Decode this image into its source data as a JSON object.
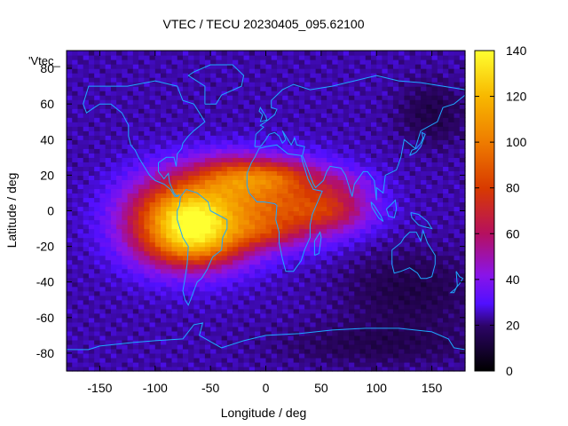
{
  "chart_data": {
    "type": "heatmap",
    "title": "VTEC / TECU 20230405_095.62100",
    "xlabel": "Longitude / deg",
    "ylabel": "Latitude / deg",
    "key_label": "'Vtec_",
    "xlim": [
      -180,
      180
    ],
    "ylim": [
      -90,
      90
    ],
    "xticks": [
      -150,
      -100,
      -50,
      0,
      50,
      100,
      150
    ],
    "yticks": [
      -80,
      -60,
      -40,
      -20,
      0,
      20,
      40,
      60,
      80
    ],
    "colorbar": {
      "min": 0,
      "max": 140,
      "ticks": [
        0,
        20,
        40,
        60,
        80,
        100,
        120,
        140
      ]
    },
    "grid_resolution_deg": {
      "lon": 5,
      "lat": 2.5
    },
    "background_tecu": 24,
    "features": [
      {
        "name": "equatorial-anomaly-americas",
        "lon": -70,
        "lat": -5,
        "peak_tecu": 112,
        "sigma_lon": 35,
        "sigma_lat": 16
      },
      {
        "name": "anomaly-south-crest",
        "lon": -60,
        "lat": -20,
        "peak_tecu": 25,
        "sigma_lon": 30,
        "sigma_lat": 8
      },
      {
        "name": "anomaly-north-crest",
        "lon": -30,
        "lat": 20,
        "peak_tecu": 35,
        "sigma_lon": 25,
        "sigma_lat": 8
      },
      {
        "name": "atlantic-africa-band",
        "lon": 10,
        "lat": 5,
        "peak_tecu": 55,
        "sigma_lon": 40,
        "sigma_lat": 14
      },
      {
        "name": "west-africa-north",
        "lon": 10,
        "lat": 20,
        "peak_tecu": 28,
        "sigma_lon": 25,
        "sigma_lat": 6
      },
      {
        "name": "africa-south",
        "lon": 0,
        "lat": -12,
        "peak_tecu": 20,
        "sigma_lon": 25,
        "sigma_lat": 6
      },
      {
        "name": "indian-ocean-tail",
        "lon": 60,
        "lat": 0,
        "peak_tecu": 28,
        "sigma_lon": 25,
        "sigma_lat": 8
      },
      {
        "name": "arabia-india",
        "lon": 70,
        "lat": 15,
        "peak_tecu": 12,
        "sigma_lon": 20,
        "sigma_lat": 6
      },
      {
        "name": "pacific-south-low",
        "lon": 130,
        "lat": -45,
        "peak_tecu": -10,
        "sigma_lon": 40,
        "sigma_lat": 15
      },
      {
        "name": "east-asia-north-low",
        "lon": 150,
        "lat": 55,
        "peak_tecu": -10,
        "sigma_lon": 20,
        "sigma_lat": 12
      },
      {
        "name": "antarctic-low",
        "lon": 100,
        "lat": -75,
        "peak_tecu": -8,
        "sigma_lon": 60,
        "sigma_lat": 8
      }
    ],
    "coastlines": [
      {
        "name": "north-america",
        "points": [
          [
            -165,
            60
          ],
          [
            -160,
            70
          ],
          [
            -140,
            70
          ],
          [
            -125,
            70
          ],
          [
            -100,
            73
          ],
          [
            -80,
            70
          ],
          [
            -75,
            62
          ],
          [
            -65,
            60
          ],
          [
            -60,
            55
          ],
          [
            -55,
            50
          ],
          [
            -65,
            45
          ],
          [
            -70,
            42
          ],
          [
            -75,
            38
          ],
          [
            -76,
            35
          ],
          [
            -80,
            32
          ],
          [
            -81,
            25
          ],
          [
            -83,
            30
          ],
          [
            -90,
            30
          ],
          [
            -97,
            27
          ],
          [
            -97,
            22
          ],
          [
            -92,
            18
          ],
          [
            -88,
            21
          ],
          [
            -87,
            16
          ],
          [
            -83,
            10
          ],
          [
            -80,
            8
          ],
          [
            -78,
            9
          ],
          [
            -82,
            8
          ],
          [
            -86,
            12
          ],
          [
            -92,
            15
          ],
          [
            -100,
            17
          ],
          [
            -105,
            20
          ],
          [
            -110,
            25
          ],
          [
            -115,
            30
          ],
          [
            -118,
            34
          ],
          [
            -122,
            37
          ],
          [
            -124,
            42
          ],
          [
            -124,
            48
          ],
          [
            -130,
            55
          ],
          [
            -140,
            60
          ],
          [
            -150,
            60
          ],
          [
            -155,
            58
          ],
          [
            -162,
            55
          ],
          [
            -165,
            60
          ]
        ]
      },
      {
        "name": "greenland",
        "points": [
          [
            -55,
            60
          ],
          [
            -45,
            60
          ],
          [
            -40,
            65
          ],
          [
            -22,
            70
          ],
          [
            -20,
            76
          ],
          [
            -30,
            82
          ],
          [
            -50,
            82
          ],
          [
            -65,
            78
          ],
          [
            -70,
            76
          ],
          [
            -55,
            70
          ],
          [
            -55,
            60
          ]
        ]
      },
      {
        "name": "south-america",
        "points": [
          [
            -77,
            8
          ],
          [
            -72,
            12
          ],
          [
            -62,
            10
          ],
          [
            -52,
            5
          ],
          [
            -50,
            0
          ],
          [
            -44,
            -2
          ],
          [
            -35,
            -5
          ],
          [
            -35,
            -10
          ],
          [
            -39,
            -15
          ],
          [
            -40,
            -22
          ],
          [
            -48,
            -26
          ],
          [
            -53,
            -33
          ],
          [
            -58,
            -38
          ],
          [
            -62,
            -40
          ],
          [
            -65,
            -45
          ],
          [
            -68,
            -50
          ],
          [
            -70,
            -53
          ],
          [
            -73,
            -50
          ],
          [
            -75,
            -45
          ],
          [
            -73,
            -38
          ],
          [
            -71,
            -30
          ],
          [
            -70,
            -20
          ],
          [
            -75,
            -15
          ],
          [
            -80,
            -5
          ],
          [
            -80,
            0
          ],
          [
            -78,
            3
          ],
          [
            -77,
            8
          ]
        ]
      },
      {
        "name": "eurasia",
        "points": [
          [
            -10,
            36
          ],
          [
            -9,
            43
          ],
          [
            -2,
            47
          ],
          [
            -5,
            48
          ],
          [
            2,
            51
          ],
          [
            8,
            54
          ],
          [
            10,
            57
          ],
          [
            5,
            58
          ],
          [
            5,
            62
          ],
          [
            15,
            68
          ],
          [
            25,
            71
          ],
          [
            40,
            68
          ],
          [
            60,
            70
          ],
          [
            80,
            73
          ],
          [
            100,
            76
          ],
          [
            120,
            73
          ],
          [
            140,
            72
          ],
          [
            160,
            70
          ],
          [
            180,
            68
          ],
          [
            180,
            65
          ],
          [
            170,
            60
          ],
          [
            160,
            58
          ],
          [
            155,
            50
          ],
          [
            140,
            45
          ],
          [
            135,
            35
          ],
          [
            125,
            40
          ],
          [
            122,
            30
          ],
          [
            118,
            23
          ],
          [
            108,
            20
          ],
          [
            106,
            10
          ],
          [
            100,
            13
          ],
          [
            100,
            6
          ],
          [
            98,
            17
          ],
          [
            92,
            22
          ],
          [
            88,
            22
          ],
          [
            80,
            15
          ],
          [
            78,
            8
          ],
          [
            72,
            20
          ],
          [
            68,
            24
          ],
          [
            58,
            25
          ],
          [
            55,
            22
          ],
          [
            52,
            17
          ],
          [
            45,
            13
          ],
          [
            43,
            15
          ],
          [
            35,
            28
          ],
          [
            33,
            31
          ],
          [
            35,
            36
          ],
          [
            28,
            37
          ],
          [
            26,
            41
          ],
          [
            23,
            37
          ],
          [
            20,
            40
          ],
          [
            15,
            45
          ],
          [
            18,
            40
          ],
          [
            15,
            38
          ],
          [
            12,
            42
          ],
          [
            8,
            44
          ],
          [
            3,
            43
          ],
          [
            0,
            40
          ],
          [
            -5,
            36
          ],
          [
            -10,
            36
          ]
        ]
      },
      {
        "name": "africa",
        "points": [
          [
            -17,
            21
          ],
          [
            -17,
            14
          ],
          [
            -15,
            10
          ],
          [
            -8,
            5
          ],
          [
            -2,
            5
          ],
          [
            8,
            4
          ],
          [
            10,
            3
          ],
          [
            9,
            -5
          ],
          [
            12,
            -12
          ],
          [
            12,
            -18
          ],
          [
            15,
            -27
          ],
          [
            18,
            -34
          ],
          [
            25,
            -34
          ],
          [
            32,
            -28
          ],
          [
            35,
            -22
          ],
          [
            40,
            -15
          ],
          [
            40,
            -8
          ],
          [
            42,
            -2
          ],
          [
            51,
            11
          ],
          [
            43,
            12
          ],
          [
            38,
            18
          ],
          [
            33,
            28
          ],
          [
            32,
            31
          ],
          [
            20,
            32
          ],
          [
            10,
            37
          ],
          [
            0,
            36
          ],
          [
            -6,
            35
          ],
          [
            -10,
            30
          ],
          [
            -13,
            27
          ],
          [
            -17,
            21
          ]
        ]
      },
      {
        "name": "australia",
        "points": [
          [
            114,
            -22
          ],
          [
            114,
            -30
          ],
          [
            116,
            -35
          ],
          [
            122,
            -34
          ],
          [
            130,
            -32
          ],
          [
            137,
            -35
          ],
          [
            140,
            -38
          ],
          [
            145,
            -38
          ],
          [
            150,
            -37
          ],
          [
            153,
            -30
          ],
          [
            153,
            -25
          ],
          [
            146,
            -18
          ],
          [
            142,
            -11
          ],
          [
            140,
            -17
          ],
          [
            136,
            -12
          ],
          [
            130,
            -12
          ],
          [
            125,
            -15
          ],
          [
            122,
            -18
          ],
          [
            114,
            -22
          ]
        ]
      },
      {
        "name": "antarctica",
        "points": [
          [
            -180,
            -84
          ],
          [
            -180,
            -78
          ],
          [
            -160,
            -78
          ],
          [
            -150,
            -76
          ],
          [
            -120,
            -74
          ],
          [
            -100,
            -73
          ],
          [
            -75,
            -72
          ],
          [
            -65,
            -64
          ],
          [
            -57,
            -63
          ],
          [
            -60,
            -70
          ],
          [
            -40,
            -77
          ],
          [
            -20,
            -73
          ],
          [
            0,
            -70
          ],
          [
            30,
            -69
          ],
          [
            60,
            -67
          ],
          [
            90,
            -66
          ],
          [
            120,
            -66
          ],
          [
            150,
            -68
          ],
          [
            165,
            -72
          ],
          [
            170,
            -77
          ],
          [
            180,
            -78
          ],
          [
            180,
            -84
          ]
        ]
      },
      {
        "name": "britain",
        "points": [
          [
            -5,
            50
          ],
          [
            1,
            51
          ],
          [
            0,
            53
          ],
          [
            -3,
            56
          ],
          [
            -5,
            58
          ],
          [
            -6,
            56
          ],
          [
            -3,
            54
          ],
          [
            -5,
            50
          ]
        ]
      },
      {
        "name": "japan",
        "points": [
          [
            130,
            31
          ],
          [
            132,
            34
          ],
          [
            136,
            35
          ],
          [
            140,
            38
          ],
          [
            142,
            41
          ],
          [
            141,
            44
          ],
          [
            144,
            43
          ],
          [
            140,
            36
          ],
          [
            136,
            33
          ],
          [
            130,
            31
          ]
        ]
      },
      {
        "name": "madagascar",
        "points": [
          [
            44,
            -25
          ],
          [
            48,
            -24
          ],
          [
            50,
            -15
          ],
          [
            49,
            -12
          ],
          [
            44,
            -17
          ],
          [
            44,
            -25
          ]
        ]
      },
      {
        "name": "new-zealand",
        "points": [
          [
            172,
            -34
          ],
          [
            175,
            -37
          ],
          [
            178,
            -38
          ],
          [
            175,
            -41
          ],
          [
            171,
            -44
          ],
          [
            167,
            -46
          ],
          [
            170,
            -46
          ],
          [
            173,
            -42
          ],
          [
            172,
            -34
          ]
        ]
      },
      {
        "name": "borneo",
        "points": [
          [
            109,
            1
          ],
          [
            111,
            -3
          ],
          [
            116,
            -4
          ],
          [
            118,
            1
          ],
          [
            117,
            6
          ],
          [
            114,
            4
          ],
          [
            109,
            1
          ]
        ]
      },
      {
        "name": "sumatra",
        "points": [
          [
            95,
            5
          ],
          [
            98,
            3
          ],
          [
            104,
            -3
          ],
          [
            106,
            -6
          ],
          [
            102,
            -4
          ],
          [
            96,
            2
          ],
          [
            95,
            5
          ]
        ]
      },
      {
        "name": "new-guinea",
        "points": [
          [
            131,
            -1
          ],
          [
            138,
            -2
          ],
          [
            146,
            -6
          ],
          [
            150,
            -10
          ],
          [
            143,
            -9
          ],
          [
            138,
            -8
          ],
          [
            132,
            -4
          ],
          [
            131,
            -1
          ]
        ]
      }
    ]
  }
}
